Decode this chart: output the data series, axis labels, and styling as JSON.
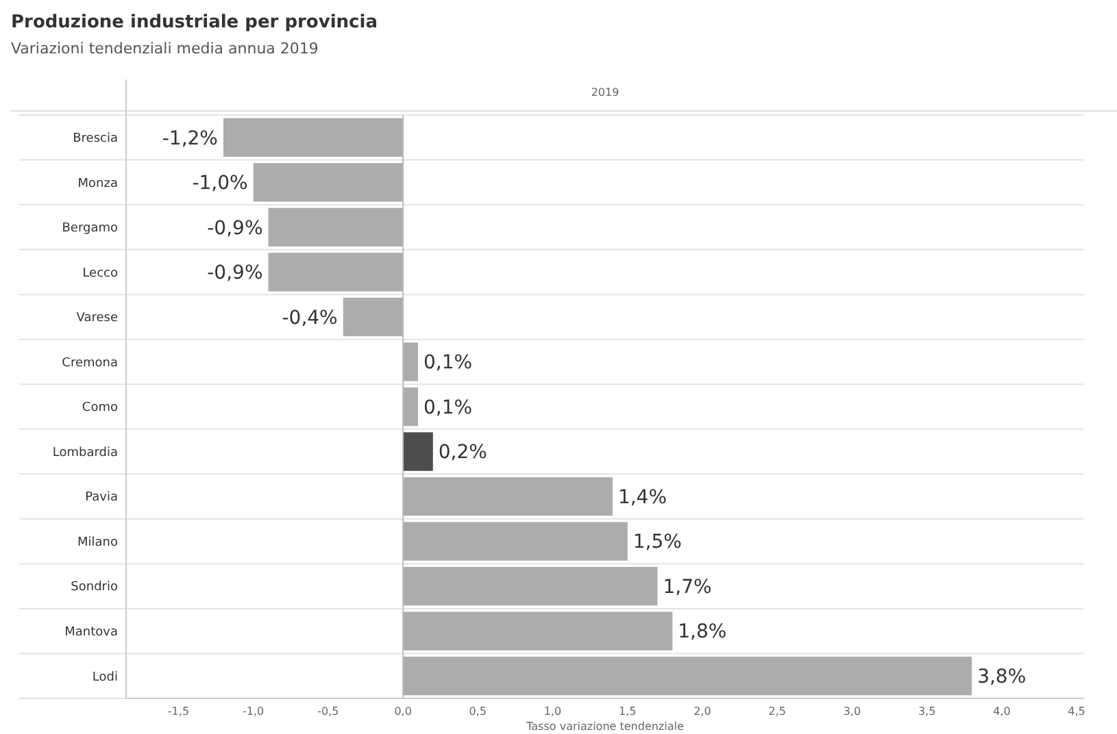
{
  "chart_data": {
    "type": "bar",
    "orientation": "horizontal",
    "title": "Produzione industriale per provincia",
    "subtitle": "Variazioni tendenziali media annua 2019",
    "annotations": [
      "2019"
    ],
    "xlabel": "Tasso variazione tendenziale",
    "categories": [
      "Brescia",
      "Monza",
      "Bergamo",
      "Lecco",
      "Varese",
      "Cremona",
      "Como",
      "Lombardia",
      "Pavia",
      "Milano",
      "Sondrio",
      "Mantova",
      "Lodi"
    ],
    "values": [
      -1.2,
      -1.0,
      -0.9,
      -0.9,
      -0.4,
      0.1,
      0.1,
      0.2,
      1.4,
      1.5,
      1.7,
      1.8,
      3.8
    ],
    "value_labels": [
      "-1,2%",
      "-1,0%",
      "-0,9%",
      "-0,9%",
      "-0,4%",
      "0,1%",
      "0,1%",
      "0,2%",
      "1,4%",
      "1,5%",
      "1,7%",
      "1,8%",
      "3,8%"
    ],
    "colors": [
      "#acacac",
      "#acacac",
      "#acacac",
      "#acacac",
      "#acacac",
      "#acacac",
      "#acacac",
      "#4d4d4d",
      "#acacac",
      "#acacac",
      "#acacac",
      "#acacac",
      "#acacac"
    ],
    "xlim": [
      -1.85,
      4.55
    ],
    "xticks": [
      {
        "value": -1.5,
        "label": "-1,5"
      },
      {
        "value": -1,
        "label": "-1,0"
      },
      {
        "value": -0.5,
        "label": "-0,5"
      },
      {
        "value": 0,
        "label": "0,0"
      },
      {
        "value": 0.5,
        "label": "0,5"
      },
      {
        "value": 1,
        "label": "1,0"
      },
      {
        "value": 1.5,
        "label": "1,5"
      },
      {
        "value": 2,
        "label": "2,0"
      },
      {
        "value": 2.5,
        "label": "2,5"
      },
      {
        "value": 3,
        "label": "3,0"
      },
      {
        "value": 3.5,
        "label": "3,5"
      },
      {
        "value": 4,
        "label": "4,0"
      },
      {
        "value": 4.5,
        "label": "4,5"
      }
    ],
    "grid": "y"
  }
}
